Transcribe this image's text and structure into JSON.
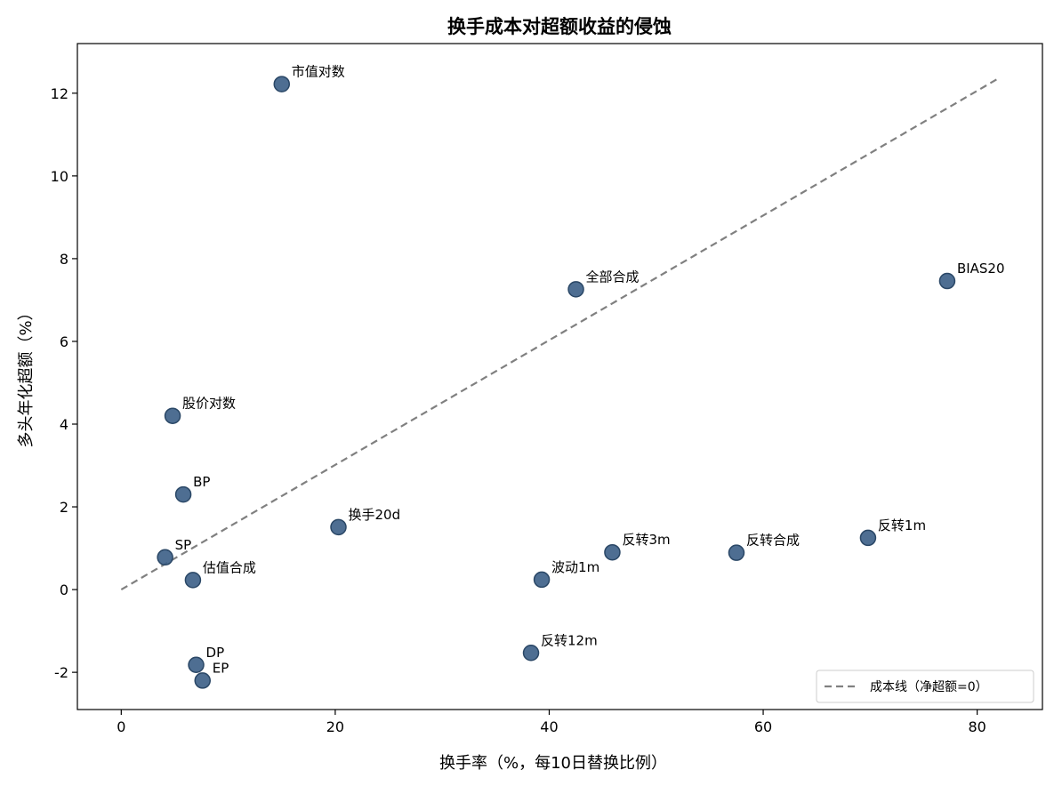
{
  "chart_data": {
    "type": "scatter",
    "title": "换手成本对超额收益的侵蚀",
    "xlabel": "换手率（%，每10日替换比例）",
    "ylabel": "多头年化超额（%）",
    "xlim": [
      -4.1,
      86.1
    ],
    "ylim": [
      -2.9,
      13.2
    ],
    "xticks": [
      0,
      20,
      40,
      60,
      80
    ],
    "xtick_labels": [
      "0",
      "20",
      "40",
      "60",
      "80"
    ],
    "yticks": [
      -2,
      0,
      2,
      4,
      6,
      8,
      10,
      12
    ],
    "ytick_labels": [
      "-2",
      "0",
      "2",
      "4",
      "6",
      "8",
      "10",
      "12"
    ],
    "grid": false,
    "marker_color": "#3b5e86",
    "line_color": "#808080",
    "points": [
      {
        "label": "市值对数",
        "x": 15.0,
        "y": 12.22
      },
      {
        "label": "全部合成",
        "x": 42.5,
        "y": 7.26
      },
      {
        "label": "BIAS20",
        "x": 77.2,
        "y": 7.46
      },
      {
        "label": "股价对数",
        "x": 4.8,
        "y": 4.2
      },
      {
        "label": "BP",
        "x": 5.8,
        "y": 2.3
      },
      {
        "label": "换手20d",
        "x": 20.3,
        "y": 1.51
      },
      {
        "label": "SP",
        "x": 4.1,
        "y": 0.78
      },
      {
        "label": "估值合成",
        "x": 6.7,
        "y": 0.23
      },
      {
        "label": "波动1m",
        "x": 39.3,
        "y": 0.24
      },
      {
        "label": "反转3m",
        "x": 45.9,
        "y": 0.9
      },
      {
        "label": "反转合成",
        "x": 57.5,
        "y": 0.89
      },
      {
        "label": "反转1m",
        "x": 69.8,
        "y": 1.25
      },
      {
        "label": "反转12m",
        "x": 38.3,
        "y": -1.53
      },
      {
        "label": "DP",
        "x": 7.0,
        "y": -1.82
      },
      {
        "label": "EP",
        "x": 7.6,
        "y": -2.2
      }
    ],
    "reference_line": {
      "name": "成本线（净超额=0）",
      "x": [
        0,
        82
      ],
      "y": [
        0,
        12.36
      ],
      "style": "dashed"
    },
    "legend": {
      "position": "bottom-right",
      "entries": [
        "成本线（净超额=0）"
      ]
    }
  }
}
